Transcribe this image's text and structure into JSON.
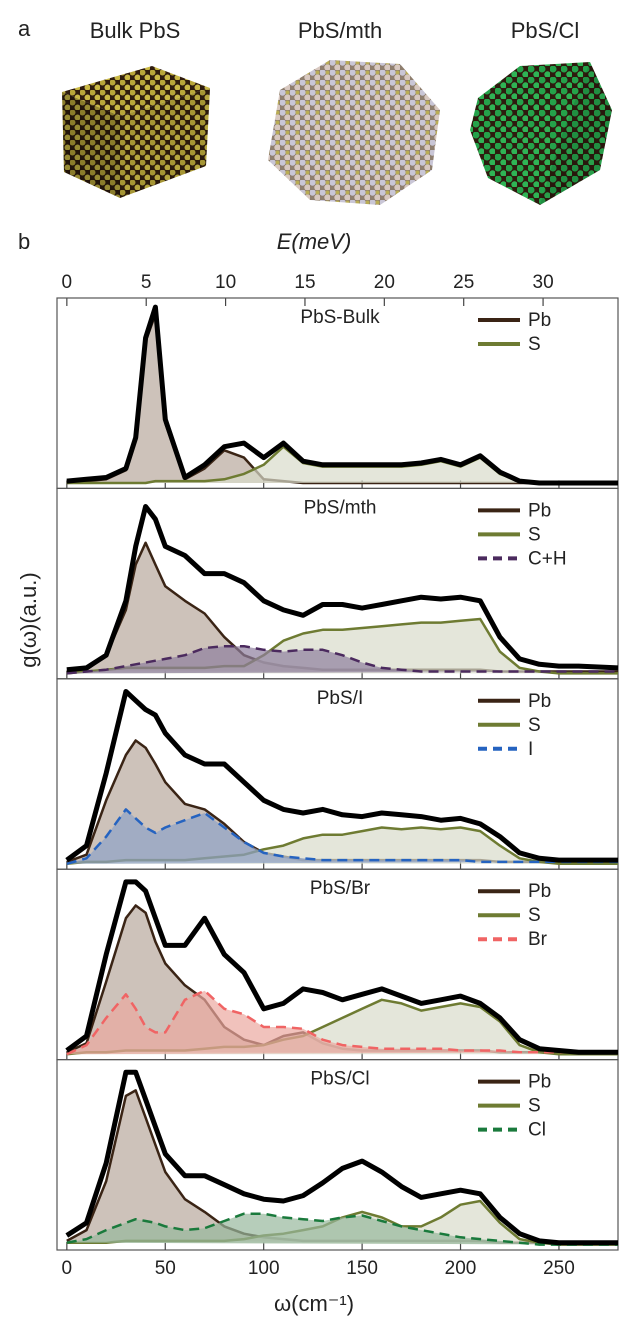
{
  "panel_a": {
    "panel_label": "a",
    "titles": [
      "Bulk PbS",
      "PbS/mth",
      "PbS/Cl"
    ]
  },
  "figure": {
    "panel_label": "b",
    "xlabel": "ω(cm⁻¹)",
    "ylabel": "g(ω)(a.u.)",
    "top_axis": {
      "label": "E(meV)",
      "xlim": [
        -0.62,
        34.72
      ],
      "xticks": [
        0,
        5,
        10,
        15,
        20,
        25,
        30
      ]
    }
  },
  "chart_data": [
    {
      "type": "area",
      "title": "PbS-Bulk",
      "legend": "upper right",
      "x": [
        0,
        10,
        20,
        30,
        35,
        40,
        45,
        50,
        60,
        70,
        80,
        90,
        100,
        110,
        120,
        130,
        140,
        150,
        160,
        170,
        180,
        190,
        200,
        210,
        220,
        230,
        240,
        250,
        260,
        280
      ],
      "xlim": [
        -5,
        280
      ],
      "xticks": [
        0,
        50,
        100,
        150,
        200,
        250
      ],
      "ylim": [
        -0.03,
        1.02
      ],
      "series": [
        {
          "color": "#000000",
          "values": [
            0.01,
            0.02,
            0.03,
            0.08,
            0.25,
            0.8,
            0.97,
            0.35,
            0.03,
            0.1,
            0.2,
            0.22,
            0.14,
            0.22,
            0.12,
            0.1,
            0.1,
            0.1,
            0.1,
            0.1,
            0.11,
            0.13,
            0.1,
            0.15,
            0.06,
            0.01,
            0,
            0,
            0,
            0
          ]
        },
        {
          "name": "Pb",
          "color": "#3a2415",
          "fill": "#b8a89c",
          "values": [
            0,
            0.01,
            0.02,
            0.07,
            0.24,
            0.78,
            0.93,
            0.33,
            0.02,
            0.08,
            0.18,
            0.14,
            0.02,
            0.01,
            0,
            0,
            0,
            0,
            0,
            0,
            0,
            0,
            0,
            0,
            0,
            0,
            0,
            0,
            0,
            0
          ]
        },
        {
          "name": "S",
          "color": "#6e7b32",
          "fill": "#d8dccb",
          "values": [
            0,
            0,
            0,
            0,
            0,
            0,
            0.01,
            0.01,
            0.01,
            0.01,
            0.02,
            0.05,
            0.1,
            0.2,
            0.11,
            0.09,
            0.09,
            0.09,
            0.09,
            0.09,
            0.1,
            0.12,
            0.09,
            0.14,
            0.05,
            0.01,
            0,
            0,
            0,
            0
          ]
        }
      ]
    },
    {
      "type": "area",
      "title": "PbS/mth",
      "legend": "upper right",
      "x": [
        0,
        10,
        20,
        30,
        35,
        40,
        45,
        50,
        60,
        70,
        80,
        90,
        100,
        110,
        120,
        130,
        140,
        150,
        160,
        170,
        180,
        190,
        200,
        210,
        220,
        230,
        240,
        250,
        260,
        280
      ],
      "xlim": [
        -5,
        280
      ],
      "xticks": [
        0,
        50,
        100,
        150,
        200,
        250
      ],
      "ylim": [
        -0.03,
        1.02
      ],
      "series": [
        {
          "color": "#000000",
          "values": [
            0.02,
            0.03,
            0.1,
            0.4,
            0.7,
            0.92,
            0.85,
            0.7,
            0.65,
            0.55,
            0.55,
            0.5,
            0.4,
            0.35,
            0.32,
            0.38,
            0.38,
            0.36,
            0.38,
            0.4,
            0.42,
            0.41,
            0.42,
            0.4,
            0.2,
            0.08,
            0.05,
            0.04,
            0.04,
            0.03
          ]
        },
        {
          "name": "Pb",
          "color": "#3a2415",
          "fill": "#b8a89c",
          "values": [
            0.01,
            0.02,
            0.1,
            0.35,
            0.6,
            0.72,
            0.6,
            0.48,
            0.4,
            0.33,
            0.2,
            0.1,
            0.06,
            0.04,
            0.03,
            0.02,
            0.02,
            0.02,
            0.02,
            0.02,
            0.02,
            0.02,
            0.02,
            0.02,
            0.01,
            0.01,
            0.01,
            0.01,
            0.01,
            0.01
          ]
        },
        {
          "name": "S",
          "color": "#6e7b32",
          "fill": "#d8dccb",
          "values": [
            0,
            0.01,
            0.02,
            0.03,
            0.03,
            0.03,
            0.03,
            0.03,
            0.03,
            0.03,
            0.04,
            0.04,
            0.1,
            0.18,
            0.22,
            0.24,
            0.24,
            0.25,
            0.26,
            0.27,
            0.28,
            0.28,
            0.29,
            0.3,
            0.12,
            0.03,
            0.01,
            0,
            0,
            0
          ]
        },
        {
          "name": "C+H",
          "color": "#4b2a5e",
          "fill": "#8f7f9e",
          "dashed": true,
          "values": [
            0,
            0.01,
            0.02,
            0.04,
            0.05,
            0.06,
            0.07,
            0.08,
            0.1,
            0.14,
            0.15,
            0.15,
            0.13,
            0.12,
            0.13,
            0.13,
            0.1,
            0.06,
            0.03,
            0.02,
            0.01,
            0.01,
            0.01,
            0.01,
            0.01,
            0.01,
            0.01,
            0.01,
            0.01,
            0.01
          ]
        }
      ]
    },
    {
      "type": "area",
      "title": "PbS/I",
      "legend": "upper right",
      "x": [
        0,
        10,
        20,
        30,
        35,
        40,
        45,
        50,
        60,
        70,
        80,
        90,
        100,
        110,
        120,
        130,
        140,
        150,
        160,
        170,
        180,
        190,
        200,
        210,
        220,
        230,
        240,
        250,
        260,
        280
      ],
      "xlim": [
        -5,
        280
      ],
      "xticks": [
        0,
        50,
        100,
        150,
        200,
        250
      ],
      "ylim": [
        -0.03,
        1.02
      ],
      "series": [
        {
          "color": "#000000",
          "values": [
            0.02,
            0.1,
            0.5,
            0.95,
            0.9,
            0.85,
            0.82,
            0.72,
            0.6,
            0.55,
            0.55,
            0.45,
            0.35,
            0.3,
            0.28,
            0.3,
            0.27,
            0.26,
            0.28,
            0.27,
            0.26,
            0.24,
            0.25,
            0.22,
            0.15,
            0.06,
            0.03,
            0.02,
            0.02,
            0.02
          ]
        },
        {
          "name": "Pb",
          "color": "#3a2415",
          "fill": "#b8a89c",
          "values": [
            0.01,
            0.05,
            0.35,
            0.6,
            0.68,
            0.64,
            0.55,
            0.45,
            0.33,
            0.3,
            0.22,
            0.12,
            0.06,
            0.04,
            0.02,
            0.02,
            0.02,
            0.02,
            0.02,
            0.02,
            0.02,
            0.02,
            0.02,
            0.02,
            0.01,
            0.01,
            0.01,
            0.01,
            0.01,
            0.01
          ]
        },
        {
          "name": "S",
          "color": "#6e7b32",
          "fill": "#d8dccb",
          "values": [
            0,
            0.01,
            0.01,
            0.02,
            0.02,
            0.02,
            0.02,
            0.02,
            0.02,
            0.03,
            0.04,
            0.05,
            0.08,
            0.1,
            0.14,
            0.16,
            0.16,
            0.18,
            0.2,
            0.19,
            0.2,
            0.19,
            0.2,
            0.18,
            0.1,
            0.03,
            0.01,
            0,
            0,
            0
          ]
        },
        {
          "name": "I",
          "color": "#2563c0",
          "fill": "#8fa2c8",
          "dashed": true,
          "values": [
            0,
            0.03,
            0.15,
            0.3,
            0.25,
            0.2,
            0.17,
            0.2,
            0.24,
            0.28,
            0.2,
            0.12,
            0.06,
            0.04,
            0.03,
            0.02,
            0.02,
            0.02,
            0.02,
            0.02,
            0.02,
            0.02,
            0.02,
            0.01,
            0.01,
            0.01,
            0.01,
            0.01,
            0.01,
            0.01
          ]
        }
      ]
    },
    {
      "type": "area",
      "title": "PbS/Br",
      "legend": "upper right",
      "x": [
        0,
        10,
        20,
        30,
        35,
        40,
        45,
        50,
        60,
        70,
        80,
        90,
        100,
        110,
        120,
        130,
        140,
        150,
        160,
        170,
        180,
        190,
        200,
        210,
        220,
        230,
        240,
        250,
        260,
        280
      ],
      "xlim": [
        -5,
        280
      ],
      "xticks": [
        0,
        50,
        100,
        150,
        200,
        250
      ],
      "ylim": [
        -0.03,
        1.02
      ],
      "series": [
        {
          "color": "#000000",
          "values": [
            0.02,
            0.1,
            0.55,
            0.95,
            0.95,
            0.9,
            0.75,
            0.6,
            0.6,
            0.75,
            0.55,
            0.45,
            0.25,
            0.28,
            0.36,
            0.34,
            0.3,
            0.33,
            0.36,
            0.32,
            0.28,
            0.3,
            0.32,
            0.28,
            0.2,
            0.08,
            0.03,
            0.02,
            0.01,
            0.01
          ]
        },
        {
          "name": "Pb",
          "color": "#3a2415",
          "fill": "#b8a89c",
          "values": [
            0.01,
            0.06,
            0.4,
            0.75,
            0.82,
            0.78,
            0.62,
            0.5,
            0.38,
            0.3,
            0.15,
            0.08,
            0.05,
            0.1,
            0.12,
            0.06,
            0.03,
            0.02,
            0.02,
            0.02,
            0.02,
            0.02,
            0.02,
            0.02,
            0.01,
            0.01,
            0.01,
            0.01,
            0.01,
            0.01
          ]
        },
        {
          "name": "S",
          "color": "#6e7b32",
          "fill": "#d8dccb",
          "values": [
            0,
            0.01,
            0.01,
            0.02,
            0.02,
            0.02,
            0.02,
            0.02,
            0.02,
            0.03,
            0.04,
            0.04,
            0.05,
            0.08,
            0.1,
            0.15,
            0.2,
            0.25,
            0.3,
            0.28,
            0.24,
            0.26,
            0.28,
            0.26,
            0.18,
            0.05,
            0.01,
            0,
            0,
            0
          ]
        },
        {
          "name": "Br",
          "color": "#f06464",
          "fill": "#eba8a0",
          "dashed": true,
          "values": [
            0,
            0.05,
            0.2,
            0.33,
            0.25,
            0.15,
            0.12,
            0.12,
            0.3,
            0.35,
            0.25,
            0.22,
            0.15,
            0.15,
            0.14,
            0.08,
            0.05,
            0.04,
            0.03,
            0.03,
            0.03,
            0.03,
            0.02,
            0.02,
            0.02,
            0.01,
            0.01,
            0.01,
            0.01,
            0.01
          ]
        }
      ]
    },
    {
      "type": "area",
      "title": "PbS/Cl",
      "legend": "upper right",
      "x": [
        0,
        10,
        20,
        30,
        35,
        40,
        45,
        50,
        60,
        70,
        80,
        90,
        100,
        110,
        120,
        130,
        140,
        150,
        160,
        170,
        180,
        190,
        200,
        210,
        220,
        230,
        240,
        250,
        260,
        280
      ],
      "xlim": [
        -5,
        280
      ],
      "xticks": [
        0,
        50,
        100,
        150,
        200,
        250
      ],
      "ylim": [
        -0.03,
        1.02
      ],
      "series": [
        {
          "color": "#000000",
          "values": [
            0.05,
            0.12,
            0.45,
            0.95,
            0.95,
            0.8,
            0.65,
            0.5,
            0.38,
            0.38,
            0.33,
            0.28,
            0.25,
            0.24,
            0.27,
            0.34,
            0.42,
            0.46,
            0.4,
            0.32,
            0.26,
            0.28,
            0.3,
            0.28,
            0.15,
            0.06,
            0.02,
            0.01,
            0.01,
            0.01
          ]
        },
        {
          "name": "Pb",
          "color": "#3a2415",
          "fill": "#b8a89c",
          "values": [
            0.02,
            0.08,
            0.35,
            0.82,
            0.85,
            0.7,
            0.55,
            0.4,
            0.25,
            0.18,
            0.1,
            0.06,
            0.04,
            0.03,
            0.02,
            0.02,
            0.02,
            0.02,
            0.02,
            0.02,
            0.02,
            0.02,
            0.02,
            0.02,
            0.01,
            0.01,
            0.01,
            0.01,
            0.01,
            0.01
          ]
        },
        {
          "name": "S",
          "color": "#6e7b32",
          "fill": "#d8dccb",
          "values": [
            0.01,
            0.01,
            0.01,
            0.02,
            0.02,
            0.02,
            0.02,
            0.02,
            0.02,
            0.02,
            0.02,
            0.03,
            0.05,
            0.06,
            0.08,
            0.1,
            0.15,
            0.18,
            0.15,
            0.1,
            0.1,
            0.15,
            0.22,
            0.24,
            0.12,
            0.03,
            0.01,
            0,
            0,
            0
          ]
        },
        {
          "name": "Cl",
          "color": "#1a7a3c",
          "fill": "#97b89c",
          "dashed": true,
          "values": [
            0.01,
            0.03,
            0.08,
            0.12,
            0.14,
            0.13,
            0.12,
            0.1,
            0.08,
            0.09,
            0.13,
            0.17,
            0.17,
            0.15,
            0.14,
            0.13,
            0.15,
            0.16,
            0.13,
            0.1,
            0.08,
            0.06,
            0.04,
            0.03,
            0.02,
            0.01,
            0,
            0,
            0,
            0
          ]
        }
      ]
    }
  ]
}
